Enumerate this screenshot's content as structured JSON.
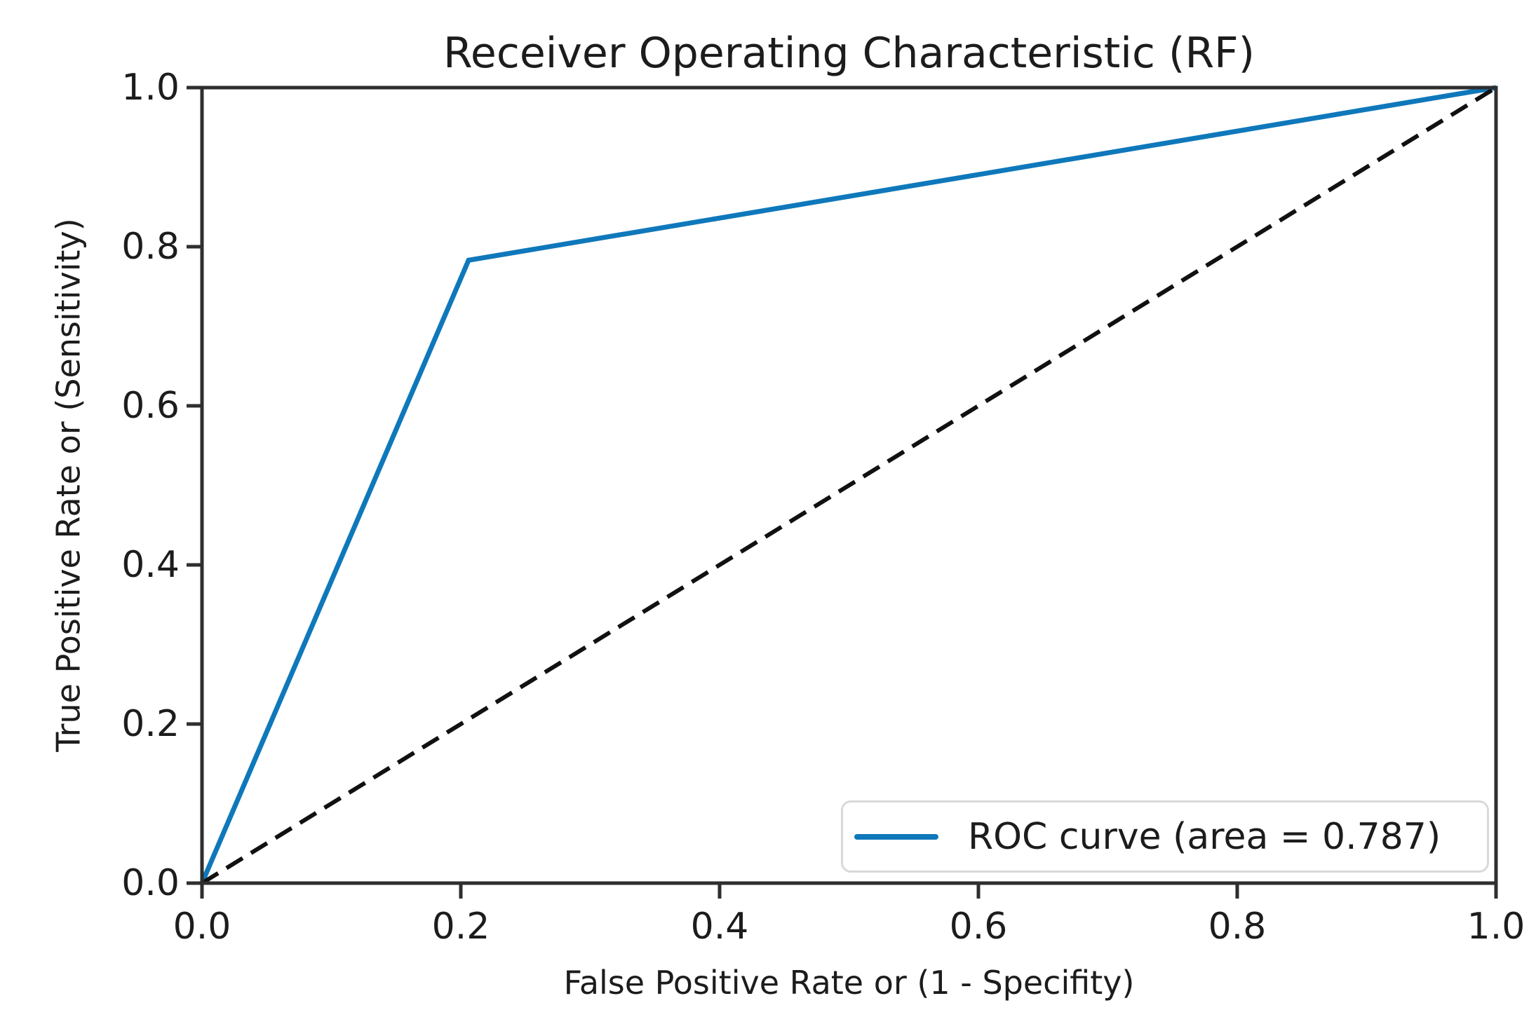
{
  "chart_data": {
    "type": "line",
    "title": "Receiver Operating Characteristic (RF)",
    "xlabel": "False Positive Rate or (1 - Specifity)",
    "ylabel": "True Positive Rate or (Sensitivity)",
    "xlim": [
      0.0,
      1.0
    ],
    "ylim": [
      0.0,
      1.0
    ],
    "x_tick_labels": [
      "0.0",
      "0.2",
      "0.4",
      "0.6",
      "0.8",
      "1.0"
    ],
    "y_tick_labels": [
      "0.0",
      "0.2",
      "0.4",
      "0.6",
      "0.8",
      "1.0"
    ],
    "grid": false,
    "auc": 0.787,
    "legend": {
      "position": "lower right",
      "entries": [
        "ROC curve (area = 0.787)"
      ]
    },
    "series": [
      {
        "name": "ROC curve (area = 0.787)",
        "style": "solid",
        "color": "#0f78bb",
        "points": [
          [
            0.0,
            0.0
          ],
          [
            0.206,
            0.783
          ],
          [
            1.0,
            1.0
          ]
        ]
      },
      {
        "name": "random-chance-diagonal",
        "style": "dashed",
        "color": "#111111",
        "points": [
          [
            0.0,
            0.0
          ],
          [
            1.0,
            1.0
          ]
        ]
      }
    ]
  },
  "style": {
    "spine_color": "#2e2e2e",
    "tick_color": "#2e2e2e"
  }
}
